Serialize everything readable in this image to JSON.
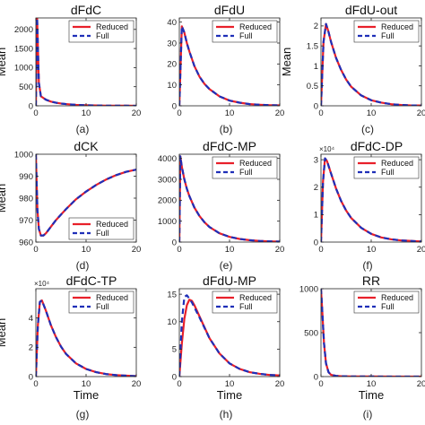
{
  "chart_data": [
    {
      "type": "line",
      "title": "dFdC",
      "caption": "(a)",
      "ylabel": "Mean",
      "xlabel": "",
      "xlim": [
        0,
        20
      ],
      "ylim": [
        0,
        2300
      ],
      "yticks": [
        0,
        500,
        1000,
        1500,
        2000
      ],
      "xticks": [
        0,
        10,
        20
      ],
      "multiplier": "",
      "legend_position": "top-right",
      "series": [
        {
          "name": "Reduced",
          "color": "#e8202a",
          "style": "solid",
          "x": [
            0,
            0.25,
            0.6,
            1,
            2,
            3,
            4,
            5,
            6,
            8,
            10,
            12,
            14,
            16,
            18,
            20
          ],
          "y": [
            0,
            2300,
            600,
            250,
            160,
            110,
            80,
            60,
            45,
            25,
            14,
            8,
            5,
            3,
            2,
            1
          ]
        },
        {
          "name": "Full",
          "color": "#1f2fb8",
          "style": "dashed",
          "x": [
            0,
            0.25,
            0.6,
            1,
            2,
            3,
            4,
            5,
            6,
            8,
            10,
            12,
            14,
            16,
            18,
            20
          ],
          "y": [
            0,
            2300,
            600,
            250,
            160,
            110,
            80,
            60,
            45,
            25,
            14,
            8,
            5,
            3,
            2,
            1
          ]
        }
      ]
    },
    {
      "type": "line",
      "title": "dFdU",
      "caption": "(b)",
      "ylabel": "",
      "xlabel": "",
      "xlim": [
        0,
        20
      ],
      "ylim": [
        0,
        42
      ],
      "yticks": [
        0,
        10,
        20,
        30,
        40
      ],
      "xticks": [
        0,
        10,
        20
      ],
      "multiplier": "",
      "legend_position": "top-right",
      "series": [
        {
          "name": "Reduced",
          "color": "#e8202a",
          "style": "solid",
          "x": [
            0,
            0.5,
            1,
            1.5,
            2,
            3,
            4,
            5,
            6,
            8,
            10,
            12,
            14,
            16,
            18,
            20
          ],
          "y": [
            0,
            38,
            35,
            30,
            26,
            19,
            14,
            10.5,
            8,
            4.5,
            2.5,
            1.5,
            0.8,
            0.5,
            0.3,
            0.2
          ]
        },
        {
          "name": "Full",
          "color": "#1f2fb8",
          "style": "dashed",
          "x": [
            0,
            0.5,
            1,
            1.5,
            2,
            3,
            4,
            5,
            6,
            8,
            10,
            12,
            14,
            16,
            18,
            20
          ],
          "y": [
            0,
            38,
            35,
            30,
            26,
            19,
            14,
            10.5,
            8,
            4.5,
            2.5,
            1.5,
            0.8,
            0.5,
            0.3,
            0.2
          ]
        }
      ]
    },
    {
      "type": "line",
      "title": "dFdU-out",
      "caption": "(c)",
      "ylabel": "Mean",
      "xlabel": "",
      "xlim": [
        0,
        20
      ],
      "ylim": [
        0,
        2.2
      ],
      "yticks": [
        0,
        0.5,
        1,
        1.5,
        2
      ],
      "xticks": [
        0,
        10,
        20
      ],
      "multiplier": "",
      "legend_position": "top-right",
      "series": [
        {
          "name": "Reduced",
          "color": "#e8202a",
          "style": "solid",
          "x": [
            0,
            0.5,
            1,
            1.5,
            2,
            3,
            4,
            5,
            6,
            8,
            10,
            12,
            14,
            16,
            18,
            20
          ],
          "y": [
            0,
            1.6,
            2.05,
            1.85,
            1.6,
            1.2,
            0.9,
            0.66,
            0.48,
            0.26,
            0.14,
            0.08,
            0.04,
            0.02,
            0.01,
            0.01
          ]
        },
        {
          "name": "Full",
          "color": "#1f2fb8",
          "style": "dashed",
          "x": [
            0,
            0.5,
            1,
            1.5,
            2,
            3,
            4,
            5,
            6,
            8,
            10,
            12,
            14,
            16,
            18,
            20
          ],
          "y": [
            0,
            1.6,
            2.05,
            1.85,
            1.6,
            1.2,
            0.9,
            0.66,
            0.48,
            0.26,
            0.14,
            0.08,
            0.04,
            0.02,
            0.01,
            0.01
          ]
        }
      ]
    },
    {
      "type": "line",
      "title": "dCK",
      "caption": "(d)",
      "ylabel": "Mean",
      "xlabel": "",
      "xlim": [
        0,
        20
      ],
      "ylim": [
        960,
        1000
      ],
      "yticks": [
        960,
        970,
        980,
        990,
        1000
      ],
      "xticks": [
        0,
        10,
        20
      ],
      "multiplier": "",
      "legend_position": "bottom-right",
      "series": [
        {
          "name": "Reduced",
          "color": "#e8202a",
          "style": "solid",
          "x": [
            0,
            0.3,
            0.6,
            1,
            1.5,
            2,
            3,
            4,
            6,
            8,
            10,
            12,
            14,
            16,
            18,
            20
          ],
          "y": [
            1000,
            975,
            966,
            963,
            963,
            964,
            967,
            970,
            975,
            979.5,
            983,
            986,
            988.5,
            990.5,
            992,
            993
          ]
        },
        {
          "name": "Full",
          "color": "#1f2fb8",
          "style": "dashed",
          "x": [
            0,
            0.3,
            0.6,
            1,
            1.5,
            2,
            3,
            4,
            6,
            8,
            10,
            12,
            14,
            16,
            18,
            20
          ],
          "y": [
            1000,
            975,
            966,
            963,
            963,
            964,
            967,
            970,
            975,
            979.5,
            983,
            986,
            988.5,
            990.5,
            992,
            993
          ]
        }
      ]
    },
    {
      "type": "line",
      "title": "dFdC-MP",
      "caption": "(e)",
      "ylabel": "",
      "xlabel": "",
      "xlim": [
        0,
        20
      ],
      "ylim": [
        0,
        4200
      ],
      "yticks": [
        0,
        1000,
        2000,
        3000,
        4000
      ],
      "xticks": [
        0,
        10,
        20
      ],
      "multiplier": "",
      "legend_position": "top-right",
      "series": [
        {
          "name": "Reduced",
          "color": "#e8202a",
          "style": "solid",
          "x": [
            0,
            0.2,
            0.5,
            1,
            1.5,
            2,
            3,
            4,
            5,
            6,
            8,
            10,
            12,
            14,
            16,
            18,
            20
          ],
          "y": [
            0,
            4100,
            3600,
            3000,
            2550,
            2200,
            1650,
            1250,
            950,
            720,
            420,
            250,
            150,
            90,
            55,
            35,
            20
          ]
        },
        {
          "name": "Full",
          "color": "#1f2fb8",
          "style": "dashed",
          "x": [
            0,
            0.2,
            0.5,
            1,
            1.5,
            2,
            3,
            4,
            5,
            6,
            8,
            10,
            12,
            14,
            16,
            18,
            20
          ],
          "y": [
            0,
            4100,
            3600,
            3000,
            2550,
            2200,
            1650,
            1250,
            950,
            720,
            420,
            250,
            150,
            90,
            55,
            35,
            20
          ]
        }
      ]
    },
    {
      "type": "line",
      "title": "dFdC-DP",
      "caption": "(f)",
      "ylabel": "",
      "xlabel": "",
      "xlim": [
        0,
        20
      ],
      "ylim": [
        0,
        3.2
      ],
      "yticks": [
        0,
        1,
        2,
        3
      ],
      "xticks": [
        0,
        10,
        20
      ],
      "multiplier": "×10⁴",
      "legend_position": "top-right",
      "series": [
        {
          "name": "Reduced",
          "color": "#e8202a",
          "style": "solid",
          "x": [
            0,
            0.4,
            0.8,
            1.2,
            2,
            3,
            4,
            5,
            6,
            8,
            10,
            12,
            14,
            16,
            18,
            20
          ],
          "y": [
            0,
            2.2,
            3.05,
            2.95,
            2.5,
            1.95,
            1.5,
            1.15,
            0.88,
            0.52,
            0.3,
            0.17,
            0.1,
            0.06,
            0.04,
            0.02
          ]
        },
        {
          "name": "Full",
          "color": "#1f2fb8",
          "style": "dashed",
          "x": [
            0,
            0.4,
            0.8,
            1.2,
            2,
            3,
            4,
            5,
            6,
            8,
            10,
            12,
            14,
            16,
            18,
            20
          ],
          "y": [
            0,
            2.2,
            3.05,
            2.95,
            2.5,
            1.95,
            1.5,
            1.15,
            0.88,
            0.52,
            0.3,
            0.17,
            0.1,
            0.06,
            0.04,
            0.02
          ]
        }
      ]
    },
    {
      "type": "line",
      "title": "dFdC-TP",
      "caption": "(g)",
      "ylabel": "Mean",
      "xlabel": "Time",
      "xlim": [
        0,
        20
      ],
      "ylim": [
        0,
        6
      ],
      "yticks": [
        0,
        2,
        4
      ],
      "xticks": [
        0,
        10,
        20
      ],
      "multiplier": "×10⁴",
      "legend_position": "top-right",
      "series": [
        {
          "name": "Reduced",
          "color": "#e8202a",
          "style": "solid",
          "x": [
            0,
            0.4,
            0.8,
            1.2,
            2,
            3,
            4,
            5,
            6,
            8,
            10,
            12,
            14,
            16,
            18,
            20
          ],
          "y": [
            0,
            3.5,
            5.1,
            5.2,
            4.5,
            3.5,
            2.7,
            2.05,
            1.55,
            0.9,
            0.52,
            0.3,
            0.17,
            0.1,
            0.06,
            0.03
          ]
        },
        {
          "name": "Full",
          "color": "#1f2fb8",
          "style": "dashed",
          "x": [
            0,
            0.4,
            0.8,
            1.2,
            2,
            3,
            4,
            5,
            6,
            8,
            10,
            12,
            14,
            16,
            18,
            20
          ],
          "y": [
            0,
            3.5,
            5.1,
            5.2,
            4.5,
            3.5,
            2.7,
            2.05,
            1.55,
            0.9,
            0.52,
            0.3,
            0.17,
            0.1,
            0.06,
            0.03
          ]
        }
      ]
    },
    {
      "type": "line",
      "title": "dFdU-MP",
      "caption": "(h)",
      "ylabel": "",
      "xlabel": "Time",
      "xlim": [
        0,
        20
      ],
      "ylim": [
        0,
        16
      ],
      "yticks": [
        0,
        5,
        10,
        15
      ],
      "xticks": [
        0,
        10,
        20
      ],
      "multiplier": "",
      "legend_position": "top-right",
      "series": [
        {
          "name": "Reduced",
          "color": "#e8202a",
          "style": "solid",
          "x": [
            0,
            0.5,
            1,
            1.5,
            2,
            2.5,
            3,
            4,
            5,
            6,
            8,
            10,
            12,
            14,
            16,
            18,
            20
          ],
          "y": [
            0,
            6,
            10.5,
            13,
            14,
            13.8,
            13,
            11,
            9,
            7,
            4.2,
            2.4,
            1.4,
            0.8,
            0.5,
            0.3,
            0.2
          ]
        },
        {
          "name": "Full",
          "color": "#1f2fb8",
          "style": "dashed",
          "x": [
            0,
            0.5,
            1,
            1.5,
            2,
            2.5,
            3,
            4,
            5,
            6,
            8,
            10,
            12,
            14,
            16,
            18,
            20
          ],
          "y": [
            0,
            10,
            14.5,
            14.8,
            14.2,
            13.5,
            12.6,
            10.8,
            8.9,
            7,
            4.2,
            2.4,
            1.4,
            0.8,
            0.5,
            0.3,
            0.2
          ]
        }
      ]
    },
    {
      "type": "line",
      "title": "RR",
      "caption": "(i)",
      "ylabel": "",
      "xlabel": "Time",
      "xlim": [
        0,
        20
      ],
      "ylim": [
        0,
        1000
      ],
      "yticks": [
        0,
        500,
        1000
      ],
      "xticks": [
        0,
        10,
        20
      ],
      "multiplier": "",
      "legend_position": "top-right",
      "series": [
        {
          "name": "Reduced",
          "color": "#e8202a",
          "style": "solid",
          "x": [
            0,
            0.3,
            0.6,
            1,
            1.5,
            2,
            3,
            4,
            6,
            10,
            15,
            20
          ],
          "y": [
            1000,
            700,
            380,
            150,
            50,
            20,
            8,
            4,
            2,
            1,
            0.5,
            0.3
          ]
        },
        {
          "name": "Full",
          "color": "#1f2fb8",
          "style": "dashed",
          "x": [
            0,
            0.3,
            0.6,
            1,
            1.5,
            2,
            3,
            4,
            6,
            10,
            15,
            20
          ],
          "y": [
            1000,
            700,
            380,
            150,
            50,
            20,
            8,
            4,
            2,
            1,
            0.5,
            0.3
          ]
        }
      ]
    }
  ]
}
